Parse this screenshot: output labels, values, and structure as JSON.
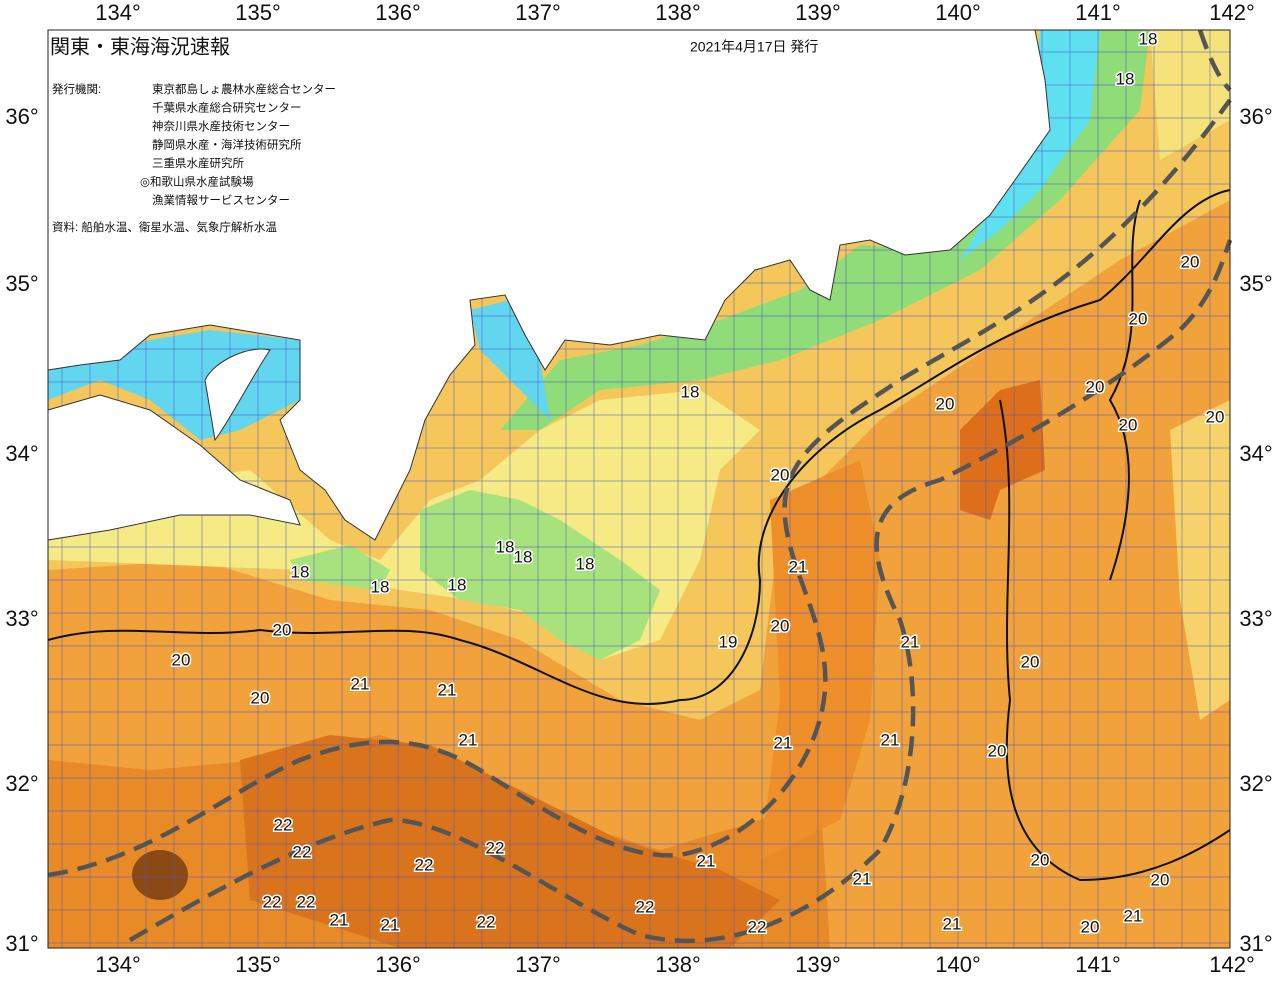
{
  "header": {
    "title": "関東・東海海況速報",
    "date": "2021年4月17日 発行"
  },
  "issuers": {
    "label": "発行機関:",
    "list": [
      "東京都島しょ農林水産総合センター",
      "千葉県水産総合研究センター",
      "神奈川県水産技術センター",
      "静岡県水産・海洋技術研究所",
      "三重県水産研究所",
      "◎和歌山県水産試験場",
      "漁業情報サービスセンター"
    ]
  },
  "source": "資料: 船舶水温、衛星水温、気象庁解析水温",
  "axes": {
    "lon_labels": [
      "134°",
      "135°",
      "136°",
      "137°",
      "138°",
      "139°",
      "140°",
      "141°",
      "142°"
    ],
    "lat_labels": [
      "36°",
      "35°",
      "34°",
      "33°",
      "32°",
      "31°"
    ]
  },
  "contour_labels": [
    18,
    18,
    20,
    20,
    20,
    20,
    20,
    20,
    18,
    20,
    21,
    18,
    18,
    18,
    18,
    18,
    18,
    20,
    20,
    20,
    21,
    21,
    19,
    20,
    21,
    20,
    21,
    21,
    21,
    20,
    22,
    22,
    22,
    22,
    21,
    21,
    20,
    20,
    22,
    22,
    21,
    21,
    22,
    22,
    22,
    21,
    20,
    21
  ]
}
